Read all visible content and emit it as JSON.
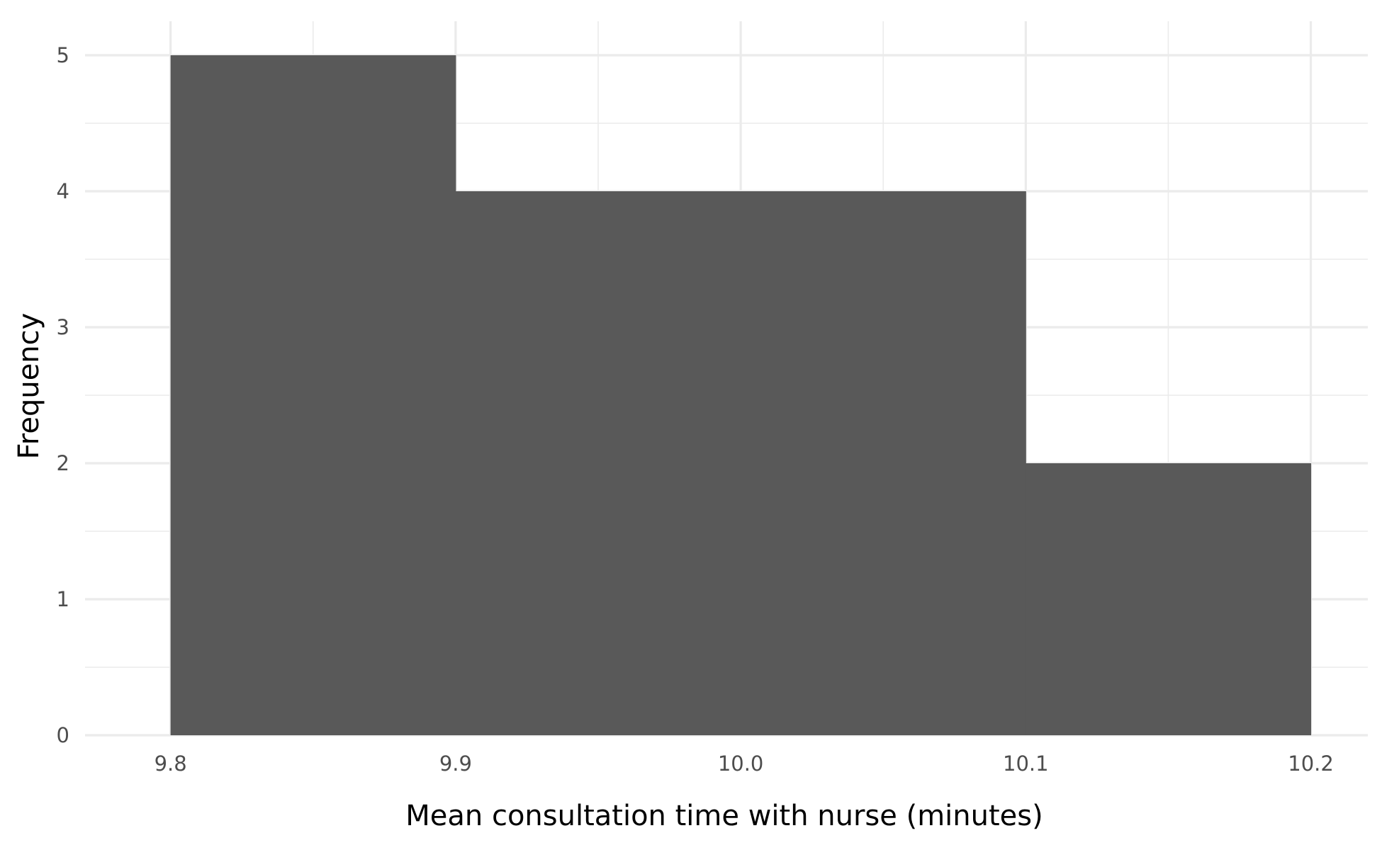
{
  "chart_data": {
    "type": "bar",
    "subtype": "histogram",
    "title": "",
    "xlabel": "Mean consultation time with nurse (minutes)",
    "ylabel": "Frequency",
    "bins": [
      {
        "x0": 9.8,
        "x1": 9.9,
        "count": 5
      },
      {
        "x0": 9.9,
        "x1": 10.0,
        "count": 4
      },
      {
        "x0": 10.0,
        "x1": 10.1,
        "count": 4
      },
      {
        "x0": 10.1,
        "x1": 10.2,
        "count": 2
      }
    ],
    "xlim": [
      9.77,
      10.22
    ],
    "ylim": [
      0,
      5.25
    ],
    "x_ticks": [
      9.8,
      9.9,
      10.0,
      10.1,
      10.2
    ],
    "x_tick_labels": [
      "9.8",
      "9.9",
      "10.0",
      "10.1",
      "10.2"
    ],
    "x_minor_ticks": [
      9.85,
      9.95,
      10.05,
      10.15
    ],
    "y_ticks": [
      0,
      1,
      2,
      3,
      4,
      5
    ],
    "y_tick_labels": [
      "0",
      "1",
      "2",
      "3",
      "4",
      "5"
    ],
    "y_minor_ticks": [
      0.5,
      1.5,
      2.5,
      3.5,
      4.5
    ],
    "grid": true,
    "bar_color": "#595959",
    "grid_color": "#ebebeb",
    "background": "#ffffff"
  }
}
